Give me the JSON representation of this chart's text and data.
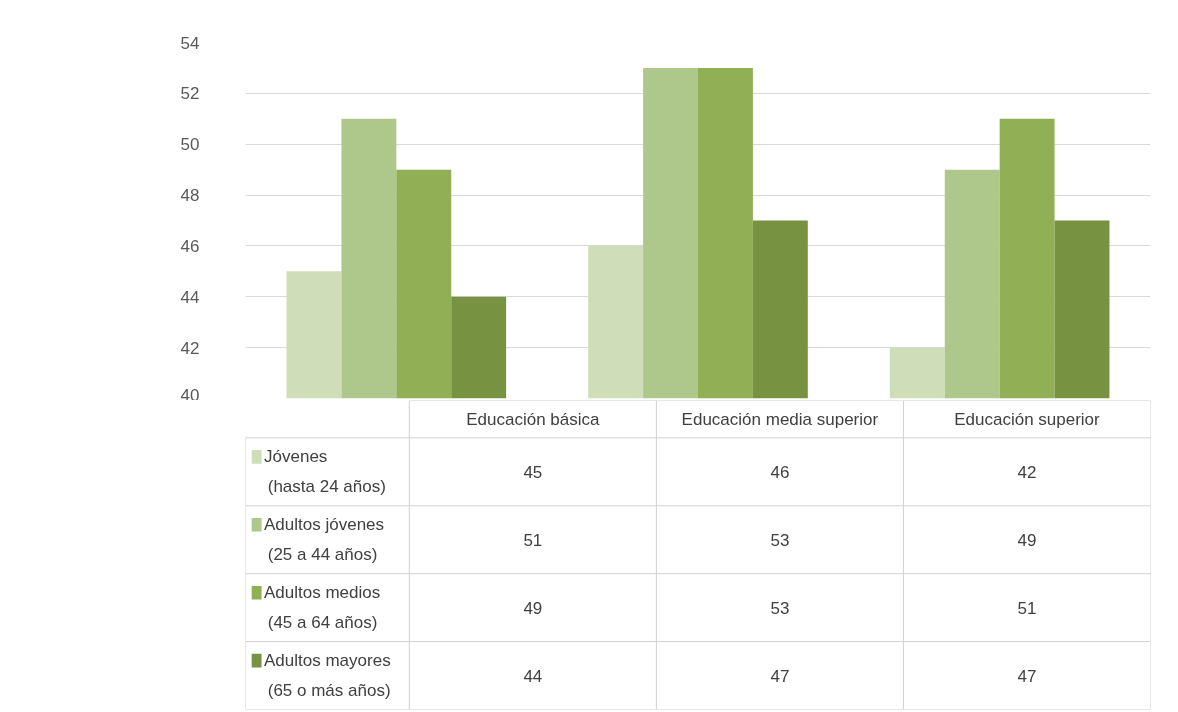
{
  "chart_data": {
    "type": "bar",
    "categories": [
      "Educación básica",
      "Educación media superior",
      "Educación superior"
    ],
    "series": [
      {
        "name": "Jóvenes (hasta 24 años)",
        "color": "#d0ddb9",
        "values": [
          45,
          46,
          42
        ]
      },
      {
        "name": "Adultos jóvenes (25 a 44 años)",
        "color": "#aec78a",
        "values": [
          51,
          53,
          49
        ]
      },
      {
        "name": "Adultos medios (45 a 64 años)",
        "color": "#91b056",
        "values": [
          49,
          53,
          51
        ]
      },
      {
        "name": "Adultos mayores (65 o más años)",
        "color": "#779240",
        "values": [
          44,
          47,
          47
        ]
      }
    ],
    "ylim": [
      40,
      54
    ],
    "yticks": [
      40,
      42,
      44,
      46,
      48,
      50,
      52,
      54
    ],
    "grid": "y",
    "legend": "bottom",
    "data_labels": true
  }
}
